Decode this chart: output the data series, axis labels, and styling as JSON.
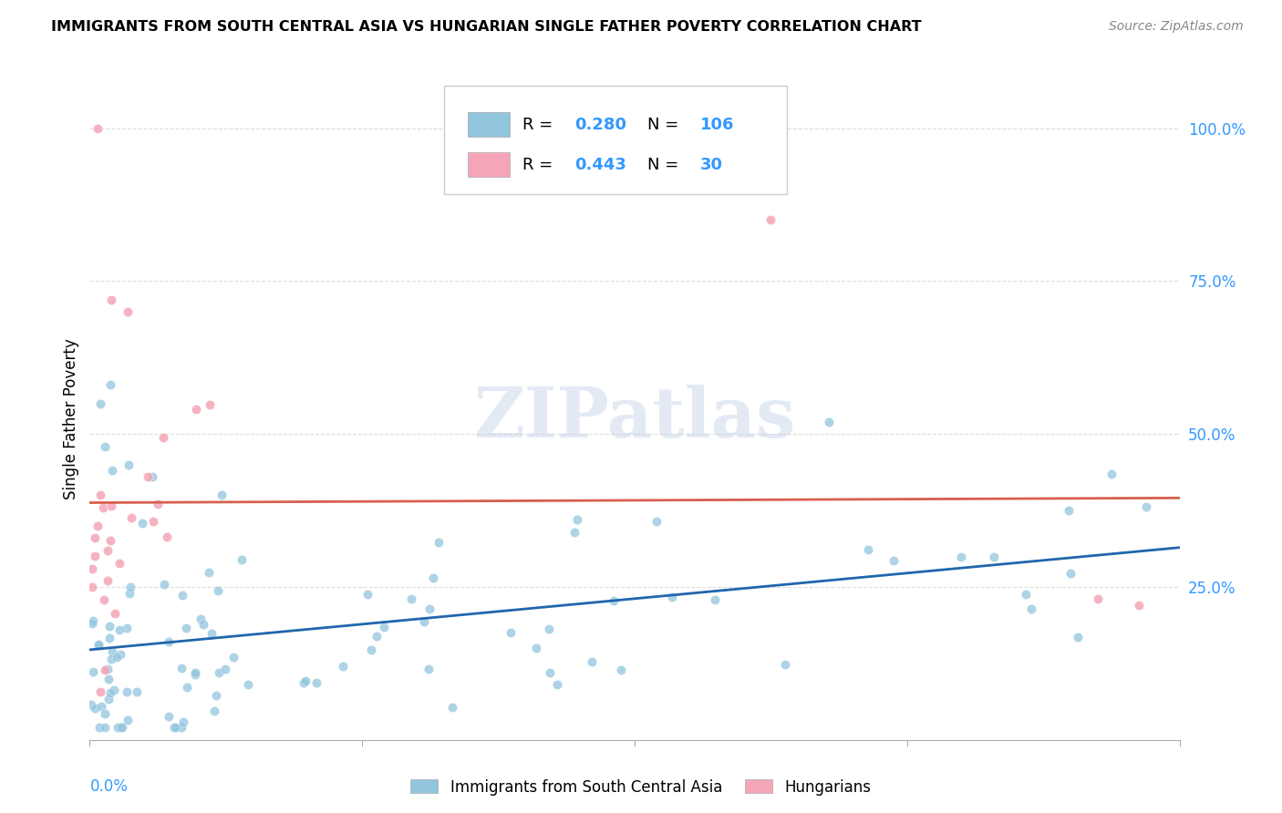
{
  "title": "IMMIGRANTS FROM SOUTH CENTRAL ASIA VS HUNGARIAN SINGLE FATHER POVERTY CORRELATION CHART",
  "source": "Source: ZipAtlas.com",
  "ylabel": "Single Father Poverty",
  "xlim": [
    0.0,
    0.4
  ],
  "ylim": [
    0.0,
    1.05
  ],
  "blue_color": "#92c5de",
  "pink_color": "#f4a6b8",
  "blue_line_color": "#2166ac",
  "pink_line_color": "#d6604d",
  "text_color": "#3399ff",
  "R_blue": 0.28,
  "N_blue": 106,
  "R_pink": 0.443,
  "N_pink": 30,
  "legend_labels": [
    "Immigrants from South Central Asia",
    "Hungarians"
  ],
  "watermark": "ZIPatlas",
  "ytick_vals": [
    0.25,
    0.5,
    0.75,
    1.0
  ],
  "ytick_labels": [
    "25.0%",
    "50.0%",
    "75.0%",
    "100.0%"
  ]
}
